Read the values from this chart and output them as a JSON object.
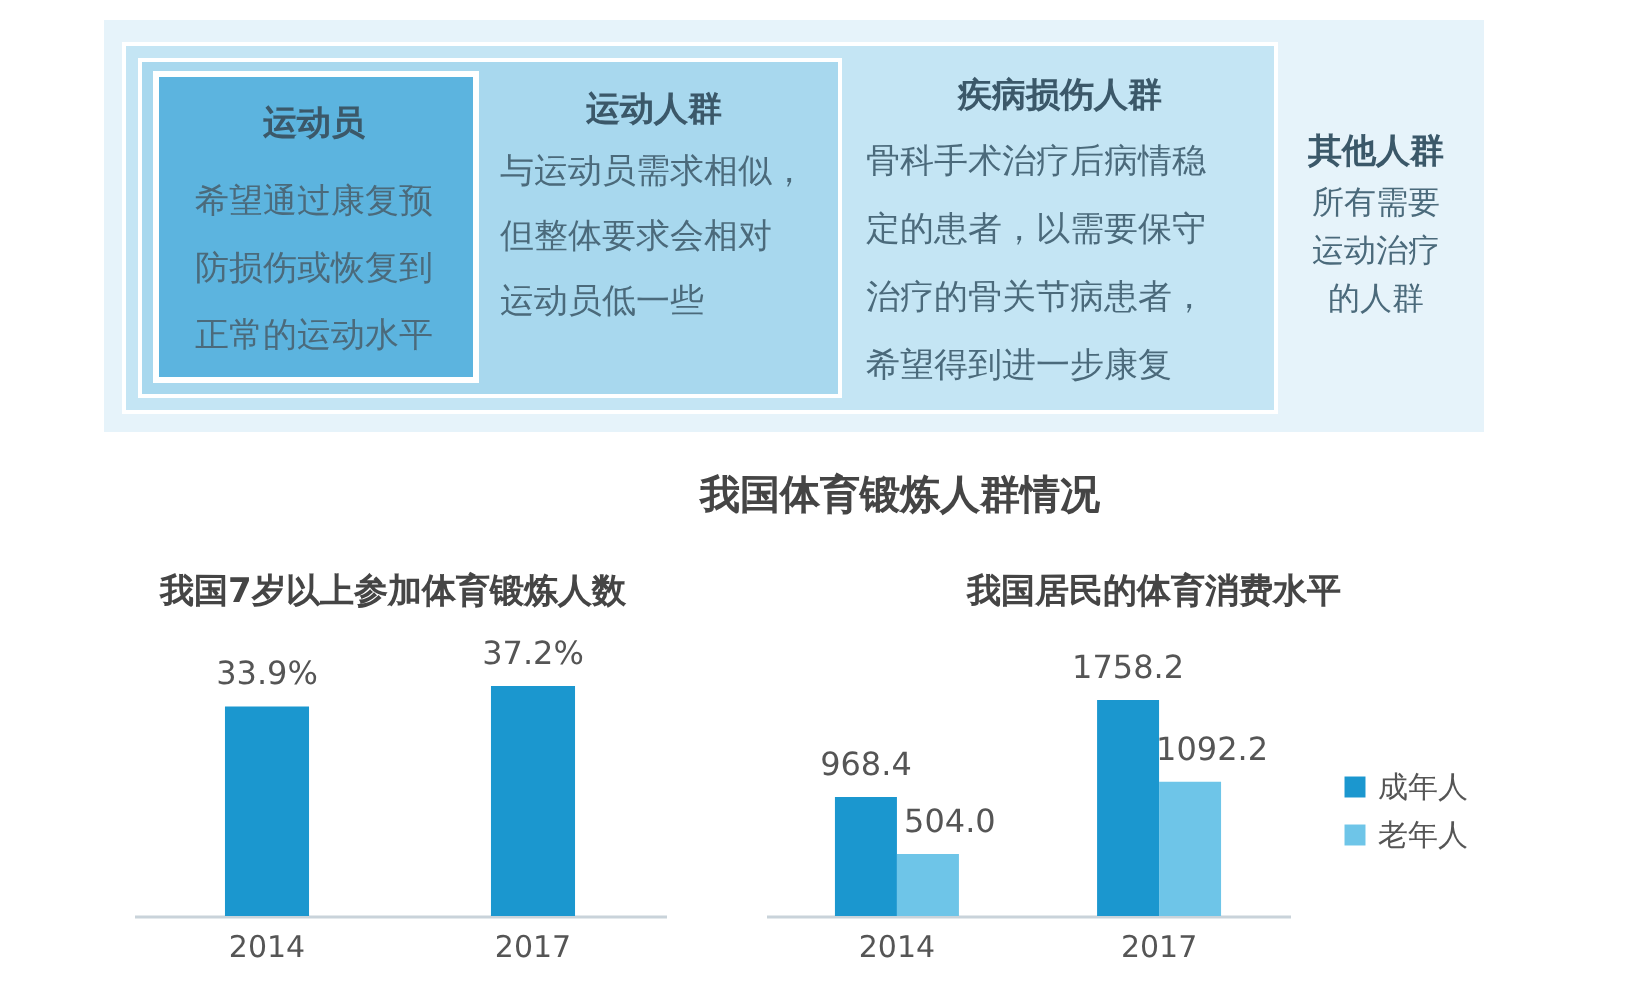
{
  "chart_data": [
    {
      "type": "other",
      "annotations": [
        "运动员",
        "希望通过康复预防损伤或恢复到正常的运动水平",
        "运动人群",
        "与运动员需求相似，但整体要求会相对运动员低一些",
        "疾病损伤人群",
        "骨科手术治疗后病情稳定的患者，以需要保守治疗的骨关节病患者，希望得到进一步康复",
        "其他人群",
        "所有需要运动治疗的人群"
      ]
    },
    {
      "type": "other",
      "title": "我国体育锻炼人群情况"
    },
    {
      "type": "bar",
      "title": "我国7岁以上参加体育锻炼人数",
      "categories": [
        "2014",
        "2017"
      ],
      "values": [
        33.9,
        37.2
      ],
      "value_labels": [
        "33.9%",
        "37.2%"
      ],
      "color": "#1b97cf",
      "tick_labels": "x"
    },
    {
      "type": "bar",
      "title": "我国居民的体育消费水平",
      "categories": [
        "2014",
        "2017"
      ],
      "series": [
        {
          "name": "成年人",
          "color": "#1b97cf",
          "values": [
            968.4,
            1758.2
          ],
          "value_labels": [
            "968.4",
            "1758.2"
          ]
        },
        {
          "name": "老年人",
          "color": "#6ec5e8",
          "values": [
            504.0,
            1092.2
          ],
          "value_labels": [
            "504.0",
            "1092.2"
          ]
        }
      ],
      "legend": "right",
      "tick_labels": "x"
    }
  ]
}
